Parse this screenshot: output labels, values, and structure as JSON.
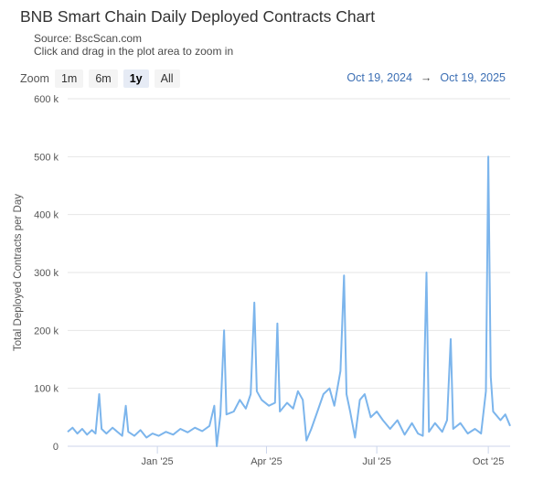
{
  "header": {
    "title": "BNB Smart Chain Daily Deployed Contracts Chart",
    "source": "Source: BscScan.com",
    "hint": "Click and drag in the plot area to zoom in"
  },
  "zoom": {
    "label": "Zoom",
    "buttons": [
      "1m",
      "6m",
      "1y",
      "All"
    ],
    "active": "1y"
  },
  "range": {
    "from": "Oct 19, 2024",
    "arrow": "→",
    "to": "Oct 19, 2025"
  },
  "colors": {
    "series": "#7cb5ec",
    "grid": "#e6e6e6",
    "accent": "#3c6fb4"
  },
  "chart_data": {
    "type": "line",
    "title": "BNB Smart Chain Daily Deployed Contracts Chart",
    "ylabel": "Total Deployed Contracts per Day",
    "xlabel": "",
    "ylim": [
      0,
      600000
    ],
    "y_ticks": [
      "0",
      "100 k",
      "200 k",
      "300 k",
      "400 k",
      "500 k",
      "600 k"
    ],
    "x_ticks": [
      {
        "label": "Jan '25",
        "date": "2025-01-01"
      },
      {
        "label": "Apr '25",
        "date": "2025-04-01"
      },
      {
        "label": "Jul '25",
        "date": "2025-07-01"
      },
      {
        "label": "Oct '25",
        "date": "2025-10-01"
      }
    ],
    "x_range": [
      "2024-10-19",
      "2025-10-19"
    ],
    "grid": true,
    "legend": "none",
    "series": [
      {
        "points": [
          [
            "2024-10-19",
            25000
          ],
          [
            "2024-10-23",
            32000
          ],
          [
            "2024-10-27",
            22000
          ],
          [
            "2024-10-31",
            30000
          ],
          [
            "2024-11-04",
            20000
          ],
          [
            "2024-11-08",
            28000
          ],
          [
            "2024-11-11",
            22000
          ],
          [
            "2024-11-14",
            90000
          ],
          [
            "2024-11-16",
            30000
          ],
          [
            "2024-11-20",
            22000
          ],
          [
            "2024-11-25",
            32000
          ],
          [
            "2024-11-29",
            25000
          ],
          [
            "2024-12-03",
            18000
          ],
          [
            "2024-12-06",
            70000
          ],
          [
            "2024-12-08",
            25000
          ],
          [
            "2024-12-13",
            18000
          ],
          [
            "2024-12-18",
            28000
          ],
          [
            "2024-12-23",
            15000
          ],
          [
            "2024-12-28",
            22000
          ],
          [
            "2025-01-02",
            18000
          ],
          [
            "2025-01-08",
            25000
          ],
          [
            "2025-01-14",
            20000
          ],
          [
            "2025-01-20",
            30000
          ],
          [
            "2025-01-26",
            24000
          ],
          [
            "2025-02-01",
            32000
          ],
          [
            "2025-02-07",
            26000
          ],
          [
            "2025-02-13",
            35000
          ],
          [
            "2025-02-17",
            70000
          ],
          [
            "2025-02-19",
            0
          ],
          [
            "2025-02-22",
            55000
          ],
          [
            "2025-02-25",
            200000
          ],
          [
            "2025-02-27",
            55000
          ],
          [
            "2025-03-05",
            60000
          ],
          [
            "2025-03-10",
            80000
          ],
          [
            "2025-03-15",
            65000
          ],
          [
            "2025-03-19",
            90000
          ],
          [
            "2025-03-22",
            248000
          ],
          [
            "2025-03-24",
            95000
          ],
          [
            "2025-03-28",
            80000
          ],
          [
            "2025-04-03",
            70000
          ],
          [
            "2025-04-08",
            75000
          ],
          [
            "2025-04-10",
            212000
          ],
          [
            "2025-04-12",
            60000
          ],
          [
            "2025-04-18",
            75000
          ],
          [
            "2025-04-23",
            65000
          ],
          [
            "2025-04-27",
            95000
          ],
          [
            "2025-05-01",
            80000
          ],
          [
            "2025-05-04",
            10000
          ],
          [
            "2025-05-08",
            30000
          ],
          [
            "2025-05-13",
            60000
          ],
          [
            "2025-05-18",
            90000
          ],
          [
            "2025-05-23",
            100000
          ],
          [
            "2025-05-27",
            70000
          ],
          [
            "2025-06-01",
            130000
          ],
          [
            "2025-06-04",
            295000
          ],
          [
            "2025-06-06",
            90000
          ],
          [
            "2025-06-09",
            60000
          ],
          [
            "2025-06-13",
            15000
          ],
          [
            "2025-06-17",
            80000
          ],
          [
            "2025-06-21",
            90000
          ],
          [
            "2025-06-26",
            50000
          ],
          [
            "2025-07-01",
            60000
          ],
          [
            "2025-07-06",
            45000
          ],
          [
            "2025-07-12",
            30000
          ],
          [
            "2025-07-18",
            45000
          ],
          [
            "2025-07-24",
            20000
          ],
          [
            "2025-07-30",
            40000
          ],
          [
            "2025-08-04",
            22000
          ],
          [
            "2025-08-08",
            18000
          ],
          [
            "2025-08-11",
            300000
          ],
          [
            "2025-08-13",
            25000
          ],
          [
            "2025-08-18",
            40000
          ],
          [
            "2025-08-24",
            25000
          ],
          [
            "2025-08-28",
            45000
          ],
          [
            "2025-08-31",
            185000
          ],
          [
            "2025-09-02",
            30000
          ],
          [
            "2025-09-08",
            40000
          ],
          [
            "2025-09-14",
            22000
          ],
          [
            "2025-09-20",
            30000
          ],
          [
            "2025-09-25",
            22000
          ],
          [
            "2025-09-29",
            95000
          ],
          [
            "2025-10-01",
            500000
          ],
          [
            "2025-10-03",
            120000
          ],
          [
            "2025-10-05",
            60000
          ],
          [
            "2025-10-07",
            55000
          ],
          [
            "2025-10-11",
            45000
          ],
          [
            "2025-10-15",
            55000
          ],
          [
            "2025-10-19",
            35000
          ]
        ]
      }
    ]
  }
}
